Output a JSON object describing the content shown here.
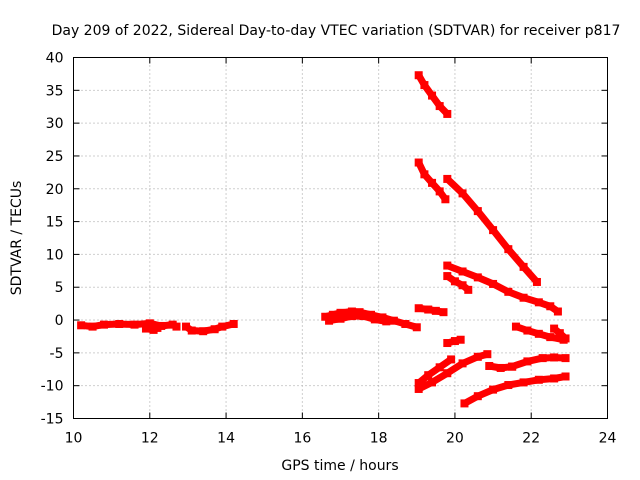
{
  "chart_data": {
    "type": "scatter",
    "title": "Day 209 of 2022, Sidereal Day-to-day VTEC variation (SDTVAR) for receiver p817",
    "xlabel": "GPS time / hours",
    "ylabel": "SDTVAR / TECUs",
    "xlim": [
      10,
      24
    ],
    "ylim": [
      -15,
      40
    ],
    "xticks": [
      10,
      12,
      14,
      16,
      18,
      20,
      22,
      24
    ],
    "yticks": [
      -15,
      -10,
      -5,
      0,
      5,
      10,
      15,
      20,
      25,
      30,
      35,
      40
    ],
    "grid": true,
    "marker_color": "#ff0000",
    "series": [
      {
        "x": [
          10.2,
          10.5,
          10.8,
          11.2,
          11.6,
          12.0,
          12.3,
          12.6,
          12.7
        ],
        "y": [
          -0.8,
          -1.0,
          -0.7,
          -0.6,
          -0.7,
          -0.5,
          -0.9,
          -0.7,
          -1.0
        ]
      },
      {
        "x": [
          11.9,
          12.1,
          12.2
        ],
        "y": [
          -1.3,
          -1.5,
          -1.2
        ]
      },
      {
        "x": [
          12.95,
          13.1,
          13.4,
          13.7,
          13.9,
          14.2
        ],
        "y": [
          -1.0,
          -1.6,
          -1.7,
          -1.4,
          -1.0,
          -0.6
        ]
      },
      {
        "x": [
          16.6,
          16.8,
          17.0,
          17.3,
          17.5,
          17.8,
          18.1,
          18.4,
          18.7,
          19.0
        ],
        "y": [
          0.5,
          0.8,
          1.1,
          1.3,
          1.2,
          0.8,
          0.4,
          -0.1,
          -0.6,
          -1.1
        ]
      },
      {
        "x": [
          16.7,
          17.0,
          17.3,
          17.6,
          17.9,
          18.2
        ],
        "y": [
          -0.1,
          0.2,
          0.6,
          0.6,
          0.1,
          -0.2
        ]
      },
      {
        "x": [
          19.05,
          19.2,
          19.4,
          19.6,
          19.8
        ],
        "y": [
          37.3,
          35.8,
          34.2,
          32.6,
          31.4
        ]
      },
      {
        "x": [
          19.05,
          19.2,
          19.4,
          19.6,
          19.75
        ],
        "y": [
          24.0,
          22.2,
          20.9,
          19.6,
          18.4
        ]
      },
      {
        "x": [
          19.8,
          20.2,
          20.6,
          21.0,
          21.4,
          21.8,
          22.15
        ],
        "y": [
          21.5,
          19.3,
          16.6,
          13.7,
          10.8,
          8.1,
          5.8
        ]
      },
      {
        "x": [
          19.8,
          20.2,
          20.6,
          21.0,
          21.4,
          21.8,
          22.2,
          22.5,
          22.7
        ],
        "y": [
          8.3,
          7.4,
          6.5,
          5.5,
          4.3,
          3.4,
          2.7,
          2.1,
          1.3
        ]
      },
      {
        "x": [
          19.8,
          20.0,
          20.2,
          20.35
        ],
        "y": [
          6.7,
          5.9,
          5.3,
          4.6
        ]
      },
      {
        "x": [
          19.05,
          19.3,
          19.5,
          19.7
        ],
        "y": [
          1.8,
          1.6,
          1.4,
          1.2
        ]
      },
      {
        "x": [
          19.8,
          20.0,
          20.15
        ],
        "y": [
          -3.5,
          -3.2,
          -3.0
        ]
      },
      {
        "x": [
          21.6,
          21.9,
          22.2,
          22.5,
          22.85
        ],
        "y": [
          -1.0,
          -1.6,
          -2.1,
          -2.6,
          -3.0
        ]
      },
      {
        "x": [
          22.6,
          22.75,
          22.9
        ],
        "y": [
          -1.3,
          -2.0,
          -2.8
        ]
      },
      {
        "x": [
          19.05,
          19.3,
          19.6,
          19.9
        ],
        "y": [
          -9.6,
          -8.4,
          -7.2,
          -6.0
        ]
      },
      {
        "x": [
          19.05,
          19.4,
          19.8,
          20.2,
          20.6,
          20.85
        ],
        "y": [
          -10.5,
          -9.5,
          -8.1,
          -6.6,
          -5.6,
          -5.2
        ]
      },
      {
        "x": [
          20.9,
          21.2,
          21.5
        ],
        "y": [
          -7.0,
          -7.3,
          -7.1
        ]
      },
      {
        "x": [
          21.5,
          21.9,
          22.3,
          22.6,
          22.9
        ],
        "y": [
          -7.1,
          -6.3,
          -5.8,
          -5.7,
          -5.8
        ]
      },
      {
        "x": [
          20.25,
          20.6,
          21.0,
          21.4,
          21.8,
          22.2,
          22.6,
          22.9
        ],
        "y": [
          -12.7,
          -11.6,
          -10.6,
          -9.9,
          -9.5,
          -9.1,
          -8.9,
          -8.6
        ]
      }
    ]
  }
}
